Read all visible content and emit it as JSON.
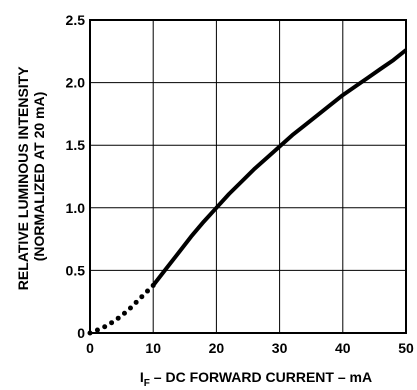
{
  "chart_data": {
    "type": "line",
    "x_ticks": [
      "0",
      "10",
      "20",
      "30",
      "40",
      "50"
    ],
    "y_ticks": [
      "0",
      "0.5",
      "1.0",
      "1.5",
      "2.0",
      "2.5"
    ],
    "xlim": [
      0,
      50
    ],
    "ylim": [
      0,
      2.5
    ],
    "grid": true,
    "xlabel": {
      "prefix": "I",
      "subscript": "F",
      "rest": " – DC FORWARD CURRENT – mA"
    },
    "ylabel_lines": [
      "RELATIVE LUMINOUS INTENSITY",
      "(NORMALIZED AT 20 mA)"
    ],
    "series": [
      {
        "style": "dotted",
        "x": [
          0,
          2,
          4,
          6,
          8,
          10
        ],
        "y": [
          0,
          0.04,
          0.1,
          0.18,
          0.28,
          0.38
        ]
      },
      {
        "style": "solid",
        "x": [
          10,
          12,
          14,
          16,
          18,
          20,
          22,
          24,
          26,
          28,
          30,
          32,
          34,
          36,
          38,
          40,
          42,
          44,
          46,
          48,
          50
        ],
        "y": [
          0.38,
          0.51,
          0.64,
          0.77,
          0.89,
          1.0,
          1.11,
          1.21,
          1.31,
          1.4,
          1.49,
          1.58,
          1.66,
          1.74,
          1.82,
          1.9,
          1.97,
          2.04,
          2.11,
          2.18,
          2.26
        ]
      }
    ]
  }
}
